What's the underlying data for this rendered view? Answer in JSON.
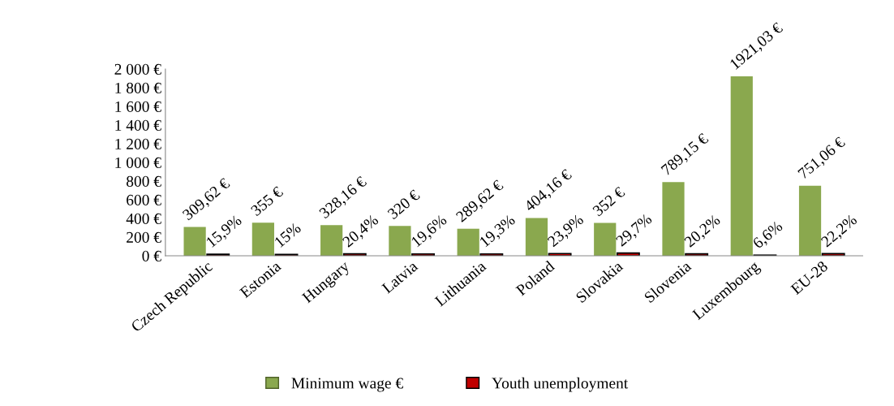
{
  "chart_data": {
    "type": "bar",
    "categories": [
      "Czech Republic",
      "Estonia",
      "Hungary",
      "Latvia",
      "Lithuania",
      "Poland",
      "Slovakia",
      "Slovenia",
      "Luxembourg",
      "EU-28"
    ],
    "series": [
      {
        "name": "Minimum wage €",
        "color": "#8aa84e",
        "values": [
          309.62,
          355,
          328.16,
          320,
          289.62,
          404.16,
          352,
          789.15,
          1921.03,
          751.06
        ],
        "value_labels": [
          "309,62 €",
          "355 €",
          "328,16 €",
          "320 €",
          "289,62 €",
          "404,16 €",
          "352 €",
          "789,15 €",
          "1921,03 €",
          "751,06 €"
        ]
      },
      {
        "name": "Youth unemployment",
        "color": "#c00000",
        "values": [
          15.9,
          15,
          20.4,
          19.6,
          19.3,
          23.9,
          29.7,
          20.2,
          6.6,
          22.2
        ],
        "value_labels": [
          "15,9%",
          "15%",
          "20,4%",
          "19,6%",
          "19,3%",
          "23,9%",
          "29,7%",
          "20,2%",
          "6,6%",
          "22,2%"
        ]
      }
    ],
    "ylim": [
      0,
      2000
    ],
    "yticks": [
      {
        "value": 0,
        "label": "0 €"
      },
      {
        "value": 200,
        "label": "200 €"
      },
      {
        "value": 400,
        "label": "400 €"
      },
      {
        "value": 600,
        "label": "600 €"
      },
      {
        "value": 800,
        "label": "800 €"
      },
      {
        "value": 1000,
        "label": "1 000 €"
      },
      {
        "value": 1200,
        "label": "1 200 €"
      },
      {
        "value": 1400,
        "label": "1 400 €"
      },
      {
        "value": 1600,
        "label": "1 600 €"
      },
      {
        "value": 1800,
        "label": "1 800 €"
      },
      {
        "value": 2000,
        "label": "2 000 €"
      }
    ],
    "grid": false,
    "legend": "bottom"
  }
}
